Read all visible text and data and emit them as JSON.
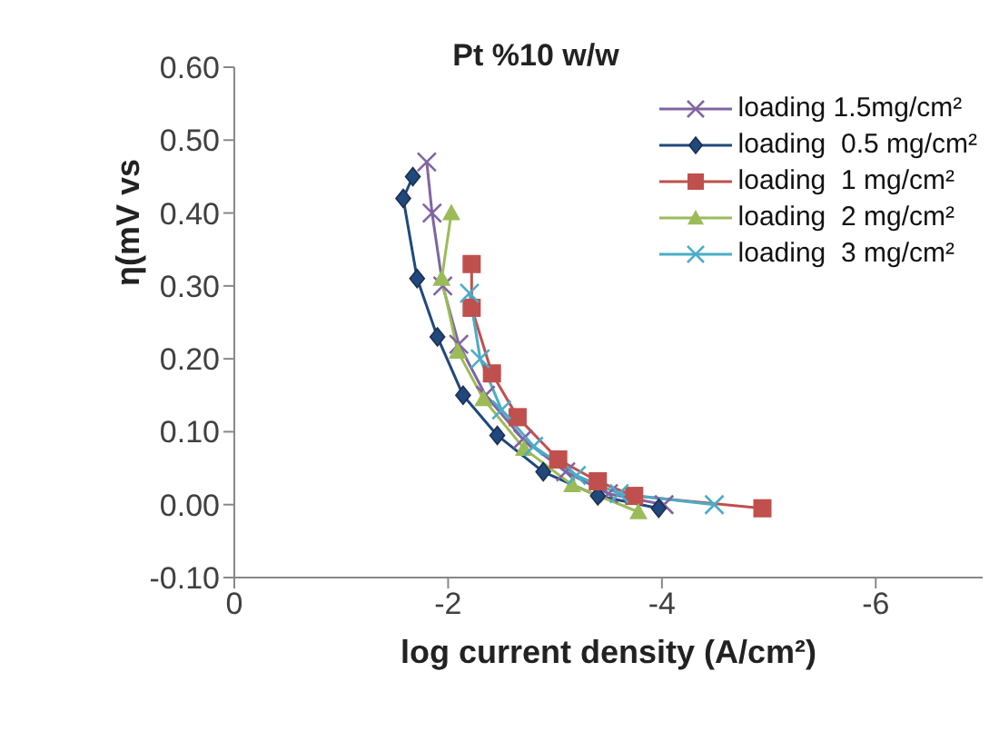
{
  "chart_data": {
    "type": "line",
    "title": "Pt %10 w/w",
    "xlabel": "log current density (A/cm²)",
    "ylabel": "η(mV vs",
    "xlim": [
      0,
      -7
    ],
    "xticks": [
      0,
      -2,
      -4,
      -6
    ],
    "ylim": [
      -0.1,
      0.6
    ],
    "yticks": [
      {
        "value": -0.1,
        "label": "-0.10"
      },
      {
        "value": 0,
        "label": "0.00"
      },
      {
        "value": 0.1,
        "label": "0.10"
      },
      {
        "value": 0.2,
        "label": "0.20"
      },
      {
        "value": 0.3,
        "label": "0.30"
      },
      {
        "value": 0.4,
        "label": "0.40"
      },
      {
        "value": 0.5,
        "label": "0.50"
      },
      {
        "value": 0.6,
        "label": "0.60"
      }
    ],
    "grid": false,
    "legend": "top right",
    "series": [
      {
        "name": "loading 1.5mg/cm²",
        "color": "#8064a2",
        "marker": "cross",
        "x": [
          -1.8,
          -1.85,
          -1.95,
          -2.1,
          -2.35,
          -2.7,
          -3.1,
          -3.5,
          -4.02
        ],
        "values": [
          0.47,
          0.4,
          0.3,
          0.22,
          0.15,
          0.09,
          0.045,
          0.015,
          0
        ]
      },
      {
        "name": "loading  0.5 mg/cm²",
        "color": "#1f497d",
        "marker": "diamond",
        "x": [
          -1.67,
          -1.58,
          -1.71,
          -1.9,
          -2.14,
          -2.46,
          -2.89,
          -3.4,
          -3.97
        ],
        "values": [
          0.45,
          0.42,
          0.31,
          0.23,
          0.15,
          0.095,
          0.045,
          0.012,
          -0.005
        ]
      },
      {
        "name": "loading  1 mg/cm²",
        "color": "#c0504d",
        "marker": "square",
        "x": [
          -2.22,
          -2.22,
          -2.41,
          -2.65,
          -3.03,
          -3.4,
          -3.74,
          -4.94
        ],
        "values": [
          0.33,
          0.27,
          0.18,
          0.12,
          0.062,
          0.032,
          0.012,
          -0.005
        ]
      },
      {
        "name": "loading  2 mg/cm²",
        "color": "#9bbb59",
        "marker": "triangle",
        "x": [
          -2.03,
          -1.94,
          -2.09,
          -2.33,
          -2.71,
          -3.16,
          -3.78
        ],
        "values": [
          0.4,
          0.31,
          0.21,
          0.145,
          0.077,
          0.027,
          -0.01
        ]
      },
      {
        "name": "loading  3 mg/cm²",
        "color": "#4bacc6",
        "marker": "cross",
        "x": [
          -2.2,
          -2.3,
          -2.5,
          -2.8,
          -3.2,
          -3.6,
          -4.49
        ],
        "values": [
          0.29,
          0.2,
          0.13,
          0.08,
          0.04,
          0.015,
          0
        ]
      }
    ]
  }
}
